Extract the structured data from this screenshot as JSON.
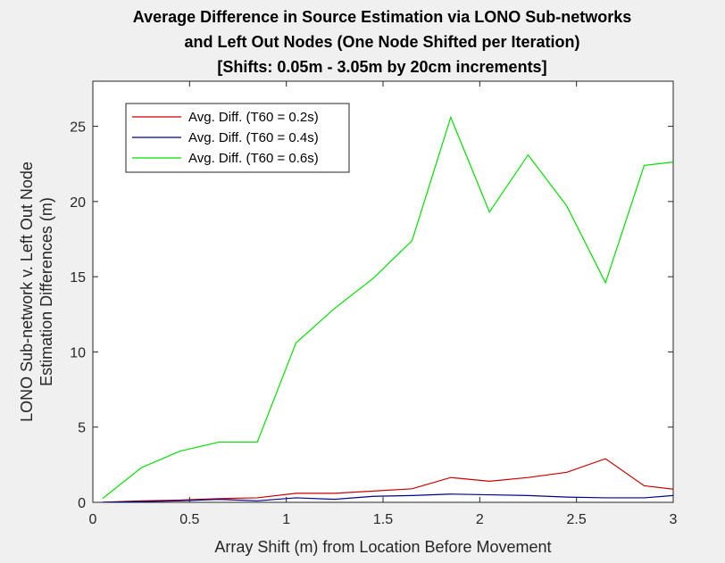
{
  "chart_data": {
    "type": "line",
    "title": [
      "Average Difference in Source Estimation via LONO Sub-networks",
      "and Left Out Nodes (One Node Shifted per Iteration)",
      "[Shifts: 0.05m - 3.05m by 20cm increments]"
    ],
    "xlabel": "Array Shift (m) from Location Before Movement",
    "ylabel": [
      "LONO Sub-network v. Left Out Node",
      "Estimation Differences (m)"
    ],
    "xlim": [
      0,
      3
    ],
    "ylim": [
      0,
      28
    ],
    "xticks": [
      0,
      0.5,
      1,
      1.5,
      2,
      2.5,
      3
    ],
    "xtick_labels": [
      "0",
      "0.5",
      "1",
      "1.5",
      "2",
      "2.5",
      "3"
    ],
    "yticks": [
      0,
      5,
      10,
      15,
      20,
      25
    ],
    "ytick_labels": [
      "0",
      "5",
      "10",
      "15",
      "20",
      "25"
    ],
    "grid": false,
    "legend_position": "top-left",
    "x": [
      0.05,
      0.25,
      0.45,
      0.65,
      0.85,
      1.05,
      1.25,
      1.45,
      1.65,
      1.85,
      2.05,
      2.25,
      2.45,
      2.65,
      2.85,
      3.05
    ],
    "series": [
      {
        "name": "Avg. Diff. (T60 = 0.2s)",
        "color": "#cc0000",
        "values": [
          0.0,
          0.1,
          0.15,
          0.25,
          0.3,
          0.6,
          0.6,
          0.75,
          0.9,
          1.65,
          1.4,
          1.65,
          2.0,
          2.9,
          1.1,
          0.8
        ]
      },
      {
        "name": "Avg. Diff. (T60 = 0.4s)",
        "color": "#00008b",
        "values": [
          0.0,
          0.05,
          0.1,
          0.2,
          0.1,
          0.3,
          0.2,
          0.4,
          0.45,
          0.55,
          0.5,
          0.45,
          0.35,
          0.3,
          0.3,
          0.5
        ]
      },
      {
        "name": "Avg. Diff. (T60 = 0.6s)",
        "color": "#00e000",
        "values": [
          0.25,
          2.3,
          3.4,
          4.0,
          4.0,
          10.6,
          12.9,
          14.9,
          17.4,
          25.6,
          19.3,
          23.1,
          19.7,
          14.6,
          22.4,
          22.7
        ]
      }
    ]
  }
}
